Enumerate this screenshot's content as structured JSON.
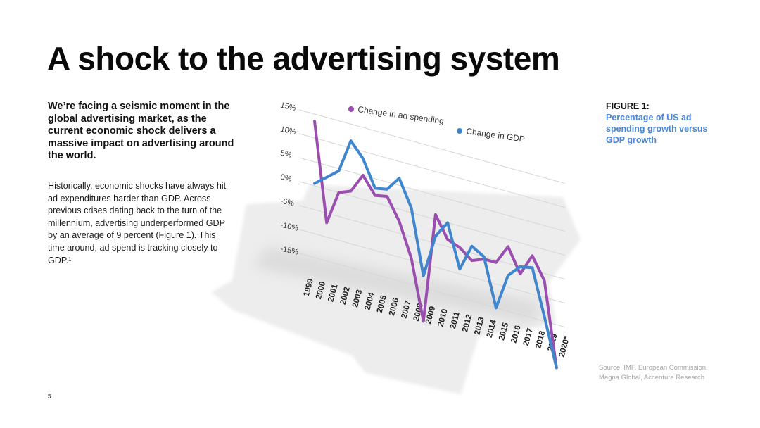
{
  "title": "A shock to the advertising system",
  "lead": "We’re facing a seismic moment in the global advertising market, as the current economic shock delivers a massive impact on advertising around the world.",
  "body": "Historically, economic shocks have always hit ad expenditures harder than GDP. Across previous crises dating back to the turn of the millennium, advertising underperformed GDP by an average of 9 percent (Figure 1). This time around, ad spend is tracking closely to GDP.¹",
  "figure": {
    "number": "FIGURE 1:",
    "caption": "Percentage of US ad spending growth versus GDP growth"
  },
  "source": "Source: IMF, European Commission, Magna Global, Accenture Research",
  "page_number": "5",
  "chart_data": {
    "type": "line",
    "x": [
      "1999",
      "2000",
      "2001",
      "2002",
      "2003",
      "2004",
      "2005",
      "2006",
      "2007",
      "2008",
      "2009",
      "2010",
      "2011",
      "2012",
      "2013",
      "2014",
      "2015",
      "2016",
      "2017",
      "2018",
      "2019",
      "2020*"
    ],
    "y_ticks": [
      "15%",
      "10%",
      "5%",
      "0%",
      "-5%",
      "-10%",
      "-15%"
    ],
    "ylim": [
      -15,
      15
    ],
    "grid": true,
    "series": [
      {
        "name": "Change in ad spending",
        "color": "#9a4fb0",
        "values": [
          13.5,
          -7,
          0,
          1,
          5,
          1.5,
          2,
          -2.5,
          -9.5,
          -22,
          1,
          -3.5,
          -4.5,
          -6.5,
          -5.5,
          -5.5,
          -1.5,
          -6.5,
          -2,
          -6.5,
          -24,
          null
        ]
      },
      {
        "name": "Change in GDP",
        "color": "#3f86cf",
        "values": [
          0.5,
          2.5,
          4.5,
          11.5,
          8.5,
          3,
          3.5,
          6.5,
          1,
          -12.5,
          -3.5,
          0,
          -9,
          -3.5,
          -5,
          -15,
          -7.5,
          -5,
          -4.5,
          -14,
          -24,
          null
        ]
      }
    ]
  }
}
